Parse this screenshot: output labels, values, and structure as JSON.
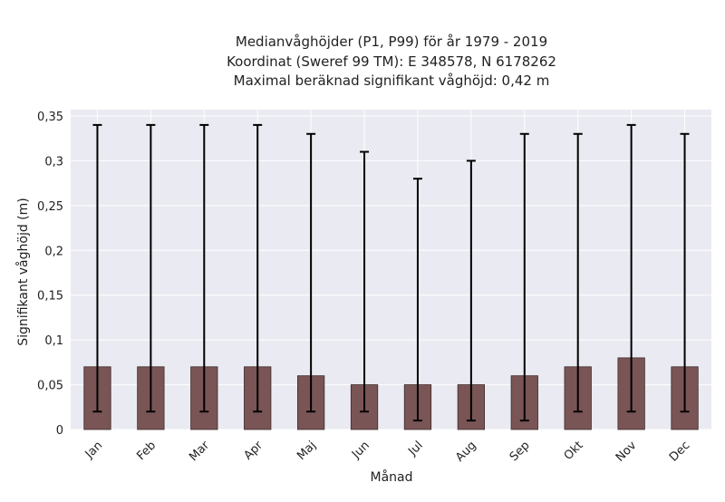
{
  "chart_data": {
    "type": "bar",
    "title_lines": [
      "Medianvåghöjder (P1, P99) för år 1979 - 2019",
      "Koordinat (Sweref 99 TM): E 348578, N 6178262",
      "Maximal beräknad signifikant våghöjd: 0,42 m"
    ],
    "xlabel": "Månad",
    "ylabel": "Signifikant våghöjd (m)",
    "categories": [
      "Jan",
      "Feb",
      "Mar",
      "Apr",
      "Maj",
      "Jun",
      "Jul",
      "Aug",
      "Sep",
      "Okt",
      "Nov",
      "Dec"
    ],
    "values": [
      0.07,
      0.07,
      0.07,
      0.07,
      0.06,
      0.05,
      0.05,
      0.05,
      0.06,
      0.07,
      0.08,
      0.07
    ],
    "p1": [
      0.02,
      0.02,
      0.02,
      0.02,
      0.02,
      0.02,
      0.01,
      0.01,
      0.01,
      0.02,
      0.02,
      0.02
    ],
    "p99": [
      0.34,
      0.34,
      0.34,
      0.34,
      0.33,
      0.31,
      0.28,
      0.3,
      0.33,
      0.33,
      0.34,
      0.33
    ],
    "ylim": [
      0,
      0.35
    ],
    "yticks": [
      0,
      0.05,
      0.1,
      0.15,
      0.2,
      0.25,
      0.3,
      0.35
    ],
    "ytick_labels": [
      "0",
      "0,05",
      "0,1",
      "0,15",
      "0,2",
      "0,25",
      "0,3",
      "0,35"
    ],
    "grid": true,
    "colors": {
      "bar_fill": "#7a5555",
      "bar_edge": "#3e2a2a",
      "error_bar": "#000000",
      "plot_background": "#eaeaf2",
      "grid": "#ffffff"
    }
  }
}
